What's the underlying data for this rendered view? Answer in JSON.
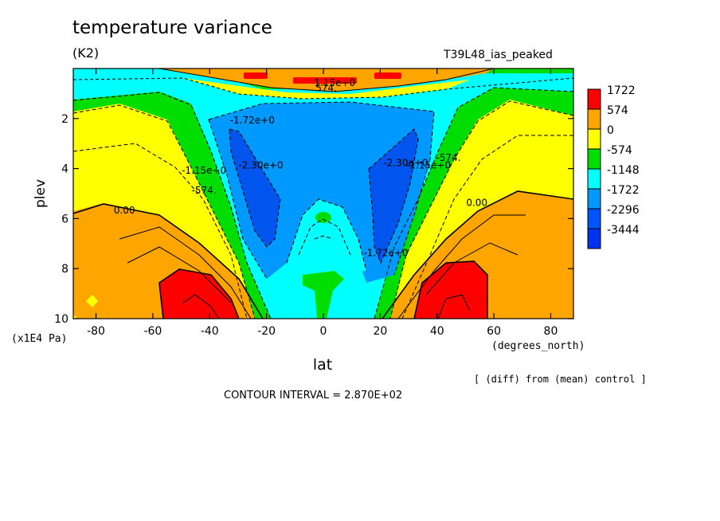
{
  "title": "temperature variance",
  "units": "(K2)",
  "run_id": "T39L48_ias_peaked",
  "footnote": "[ (diff) from (mean) control ]",
  "contour_interval": "CONTOUR INTERVAL = 2.870E+02",
  "chart_data": {
    "type": "heatmap",
    "title": "temperature variance",
    "xlabel": "lat",
    "x_units": "(degrees_north)",
    "ylabel": "plev",
    "y_units": "(x1E4 Pa)",
    "xlim": [
      -88,
      88
    ],
    "ylim": [
      10,
      0
    ],
    "x_ticks": [
      -80,
      -60,
      -40,
      -20,
      0,
      20,
      40,
      60,
      80
    ],
    "x_tick_labels": [
      "-80",
      "-60",
      "-40",
      "-20",
      "0",
      "20",
      "40",
      "60",
      "80"
    ],
    "y_ticks": [
      2,
      4,
      6,
      8,
      10
    ],
    "y_tick_labels": [
      "2",
      "4",
      "6",
      "8",
      "10"
    ],
    "legend_levels": [
      "1722",
      "574",
      "0",
      "-574",
      "-1148",
      "-1722",
      "-2296",
      "-3444"
    ],
    "legend_colors": [
      "#ff0000",
      "#ffa500",
      "#ffff00",
      "#00dd00",
      "#00ffff",
      "#0099ff",
      "#0055ff",
      "#0033ee"
    ],
    "legend_placement": "right",
    "contour_labels": [
      {
        "text": "-1.72e+0",
        "lat": -25,
        "plev": 2.2
      },
      {
        "text": "-1.15e+0",
        "lat": -42,
        "plev": 4.2
      },
      {
        "text": "-2.30e+0",
        "lat": -22,
        "plev": 4.0
      },
      {
        "text": "-574.",
        "lat": -42,
        "plev": 5.0
      },
      {
        "text": "0.00",
        "lat": -70,
        "plev": 5.8
      },
      {
        "text": "-2.30e+0",
        "lat": 29,
        "plev": 3.9
      },
      {
        "text": "-1.15e+0",
        "lat": 37,
        "plev": 4.0
      },
      {
        "text": "-574.",
        "lat": 44,
        "plev": 3.7
      },
      {
        "text": "-1.72e+0",
        "lat": 22,
        "plev": 7.5
      },
      {
        "text": "0.00",
        "lat": 54,
        "plev": 5.5
      },
      {
        "text": "574.",
        "lat": 1,
        "plev": 0.9
      },
      {
        "text": "1.15e+0",
        "lat": 4,
        "plev": 0.7
      }
    ],
    "grid": false
  }
}
